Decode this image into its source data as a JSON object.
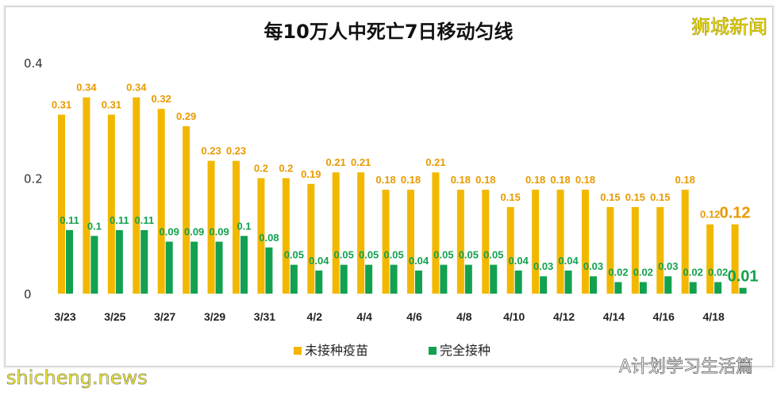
{
  "chart_data": {
    "type": "bar",
    "title": "每10万人中死亡7日移动匀线",
    "categories": [
      "3/23",
      "3/24",
      "3/25",
      "3/26",
      "3/27",
      "3/28",
      "3/29",
      "3/30",
      "3/31",
      "4/1",
      "4/2",
      "4/3",
      "4/4",
      "4/5",
      "4/6",
      "4/7",
      "4/8",
      "4/9",
      "4/10",
      "4/11",
      "4/12",
      "4/13",
      "4/14",
      "4/15",
      "4/16",
      "4/17",
      "4/18",
      "4/19"
    ],
    "tick_labels": [
      "3/23",
      "3/25",
      "3/27",
      "3/29",
      "3/31",
      "4/2",
      "4/4",
      "4/6",
      "4/8",
      "4/10",
      "4/12",
      "4/14",
      "4/16",
      "4/18"
    ],
    "y_ticks": [
      "0",
      "0.2",
      "0.4"
    ],
    "ylim": [
      0,
      0.4
    ],
    "grid": false,
    "legend_position": "bottom",
    "series": [
      {
        "name": "未接种疫苗",
        "color": "#f2b800",
        "values": [
          0.31,
          0.34,
          0.31,
          0.34,
          0.32,
          0.29,
          0.23,
          0.23,
          0.2,
          0.2,
          0.19,
          0.21,
          0.21,
          0.18,
          0.18,
          0.21,
          0.18,
          0.18,
          0.15,
          0.18,
          0.18,
          0.18,
          0.15,
          0.15,
          0.15,
          0.18,
          0.12,
          0.12
        ]
      },
      {
        "name": "完全接种",
        "color": "#12a150",
        "values": [
          0.11,
          0.1,
          0.11,
          0.11,
          0.09,
          0.09,
          0.09,
          0.1,
          0.08,
          0.05,
          0.04,
          0.05,
          0.05,
          0.05,
          0.04,
          0.05,
          0.05,
          0.05,
          0.04,
          0.03,
          0.04,
          0.03,
          0.02,
          0.02,
          0.03,
          0.02,
          0.02,
          0.01
        ]
      }
    ]
  },
  "watermark": {
    "logo": "狮城新闻",
    "source": "shicheng.news",
    "wechat": "A计划学习生活篇"
  }
}
